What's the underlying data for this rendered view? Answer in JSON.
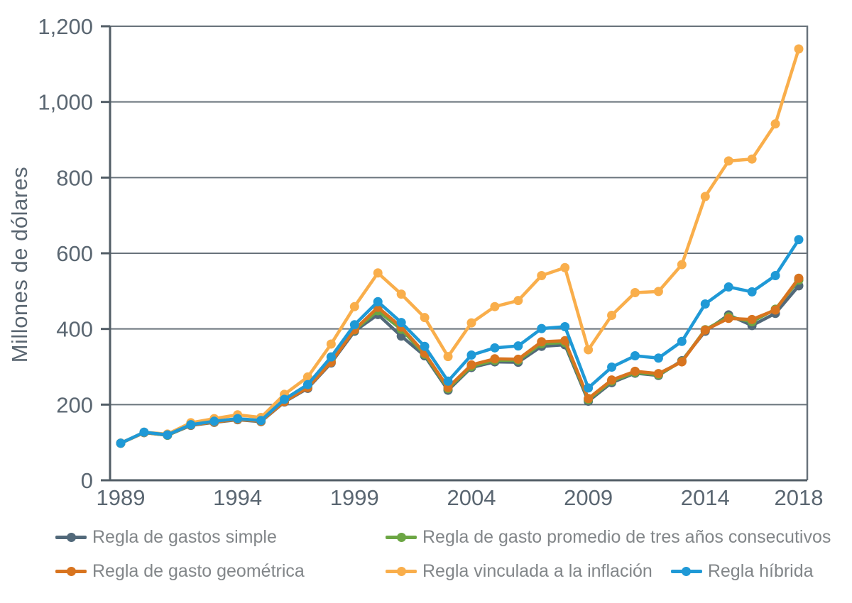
{
  "y_axis_title": "Millones de dólares",
  "chart_data": {
    "type": "line",
    "title": "",
    "xlabel": "",
    "ylabel": "Millones de dólares",
    "ylim": [
      0,
      1200
    ],
    "ytick_step": 200,
    "ytick_labels": [
      "0",
      "200",
      "400",
      "600",
      "800",
      "1,000",
      "1,200"
    ],
    "xticks": [
      1989,
      1994,
      1999,
      2004,
      2009,
      2014,
      2018
    ],
    "grid": "horizontal",
    "legend_position": "bottom",
    "years": [
      1989,
      1990,
      1991,
      1992,
      1993,
      1994,
      1995,
      1996,
      1997,
      1998,
      1999,
      2000,
      2001,
      2002,
      2003,
      2004,
      2005,
      2006,
      2007,
      2008,
      2009,
      2010,
      2011,
      2012,
      2013,
      2014,
      2015,
      2016,
      2017,
      2018
    ],
    "series": [
      {
        "id": "gastos-simple",
        "name": "Regla de gastos simple",
        "color": "#52697A",
        "values": [
          98,
          126,
          119,
          145,
          153,
          160,
          155,
          207,
          243,
          310,
          394,
          438,
          381,
          329,
          238,
          298,
          313,
          312,
          354,
          358,
          209,
          258,
          283,
          277,
          316,
          394,
          437,
          409,
          441,
          514
        ]
      },
      {
        "id": "promedio-tres-anos",
        "name": "Regla de gasto promedio de tres años consecutivos",
        "color": "#6CA644",
        "values": [
          98,
          126,
          119,
          146,
          154,
          161,
          156,
          210,
          246,
          315,
          397,
          448,
          399,
          333,
          242,
          301,
          317,
          317,
          361,
          364,
          213,
          262,
          285,
          279,
          314,
          398,
          432,
          419,
          452,
          529
        ]
      },
      {
        "id": "gasto-geometrica",
        "name": "Regla de gasto geométrica",
        "color": "#D8741F",
        "values": [
          98,
          126,
          120,
          146,
          154,
          161,
          156,
          208,
          245,
          312,
          398,
          457,
          405,
          336,
          245,
          305,
          321,
          320,
          366,
          369,
          216,
          265,
          288,
          282,
          313,
          397,
          428,
          425,
          450,
          534
        ]
      },
      {
        "id": "vinculada-inflacion",
        "name": "Regla vinculada a la inflación",
        "color": "#F9AE4B",
        "values": [
          98,
          127,
          122,
          152,
          163,
          173,
          166,
          227,
          273,
          360,
          459,
          548,
          492,
          430,
          327,
          416,
          459,
          475,
          541,
          562,
          345,
          436,
          496,
          499,
          570,
          750,
          844,
          849,
          942,
          1140
        ]
      },
      {
        "id": "hibrida",
        "name": "Regla híbrida",
        "color": "#1F99D6",
        "values": [
          98,
          127,
          120,
          147,
          156,
          163,
          158,
          214,
          253,
          326,
          411,
          472,
          417,
          354,
          262,
          331,
          350,
          355,
          401,
          406,
          244,
          299,
          329,
          323,
          367,
          466,
          511,
          498,
          541,
          636
        ]
      }
    ]
  }
}
